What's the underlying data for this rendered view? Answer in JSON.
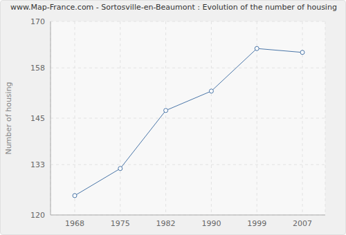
{
  "chart_data": {
    "type": "line",
    "title": "www.Map-France.com - Sortosville-en-Beaumont : Evolution of the number of housing",
    "y_label": "Number of housing",
    "categories": [
      "1968",
      "1975",
      "1982",
      "1990",
      "1999",
      "2007"
    ],
    "values": [
      125,
      132,
      147,
      152,
      163,
      162
    ],
    "color": "#4a76a8",
    "marker": "circle",
    "ylim": [
      120,
      170
    ],
    "yticks": [
      120,
      133,
      145,
      158,
      170
    ],
    "grid": true
  }
}
